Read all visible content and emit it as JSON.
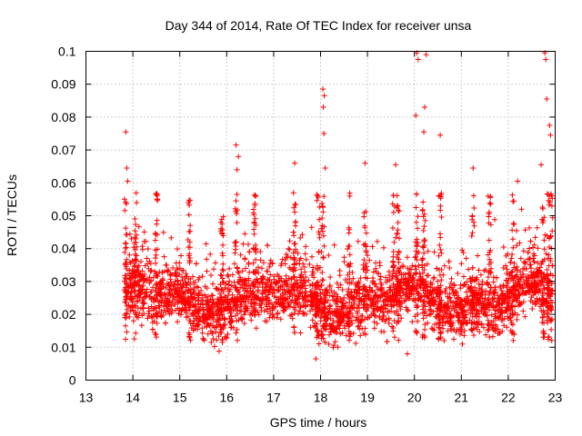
{
  "chart_data": {
    "type": "scatter",
    "title": "Day 344 of 2014, Rate Of TEC Index for receiver unsa",
    "xlabel": "GPS time / hours",
    "ylabel": "ROTI / TECUs",
    "xlim": [
      13,
      23
    ],
    "ylim": [
      0,
      0.1
    ],
    "xticks": [
      13,
      14,
      15,
      16,
      17,
      18,
      19,
      20,
      21,
      22,
      23
    ],
    "xtick_labels": [
      "13",
      "14",
      "15",
      "16",
      "17",
      "18",
      "19",
      "20",
      "21",
      "22",
      "23"
    ],
    "yticks": [
      0,
      0.01,
      0.02,
      0.03,
      0.04,
      0.05,
      0.06,
      0.07,
      0.08,
      0.09,
      0.1
    ],
    "ytick_labels": [
      "0",
      "0.01",
      "0.02",
      "0.03",
      "0.04",
      "0.05",
      "0.06",
      "0.07",
      "0.08",
      "0.09",
      "0.1"
    ],
    "grid": true,
    "marker": "+",
    "color": "#ff0000",
    "series": [
      {
        "name": "ROTI",
        "x_range": [
          13.82,
          22.95
        ],
        "typical_y_range": [
          0.008,
          0.045
        ],
        "notable_points": [
          {
            "x": 13.85,
            "y": 0.0755
          },
          {
            "x": 13.87,
            "y": 0.0645
          },
          {
            "x": 13.89,
            "y": 0.0605
          },
          {
            "x": 16.2,
            "y": 0.0715
          },
          {
            "x": 16.25,
            "y": 0.068
          },
          {
            "x": 16.22,
            "y": 0.064
          },
          {
            "x": 17.45,
            "y": 0.066
          },
          {
            "x": 18.05,
            "y": 0.0885
          },
          {
            "x": 18.08,
            "y": 0.0865
          },
          {
            "x": 18.06,
            "y": 0.083
          },
          {
            "x": 18.07,
            "y": 0.075
          },
          {
            "x": 18.1,
            "y": 0.0645
          },
          {
            "x": 18.95,
            "y": 0.066
          },
          {
            "x": 20.05,
            "y": 0.0995
          },
          {
            "x": 20.08,
            "y": 0.0975
          },
          {
            "x": 20.25,
            "y": 0.099
          },
          {
            "x": 20.03,
            "y": 0.0805
          },
          {
            "x": 20.22,
            "y": 0.083
          },
          {
            "x": 20.2,
            "y": 0.0755
          },
          {
            "x": 20.55,
            "y": 0.0745
          },
          {
            "x": 22.2,
            "y": 0.0605
          },
          {
            "x": 22.78,
            "y": 0.0995
          },
          {
            "x": 22.8,
            "y": 0.0975
          },
          {
            "x": 22.82,
            "y": 0.0855
          },
          {
            "x": 22.88,
            "y": 0.0775
          },
          {
            "x": 22.9,
            "y": 0.0745
          },
          {
            "x": 22.7,
            "y": 0.0655
          },
          {
            "x": 21.25,
            "y": 0.0645
          },
          {
            "x": 19.6,
            "y": 0.0655
          },
          {
            "x": 17.9,
            "y": 0.0065
          },
          {
            "x": 19.85,
            "y": 0.008
          }
        ]
      }
    ]
  }
}
